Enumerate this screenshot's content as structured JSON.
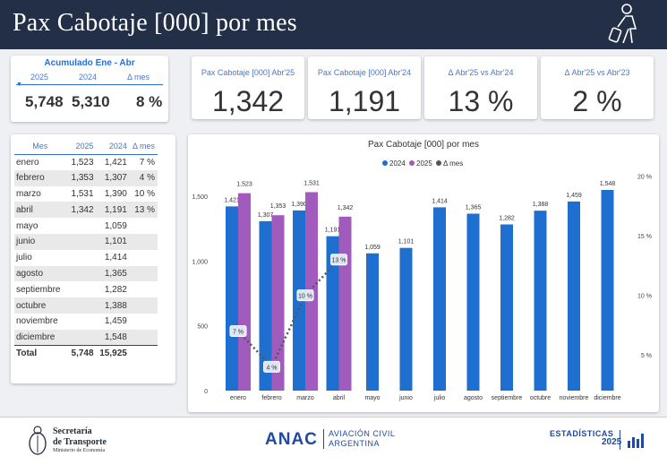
{
  "header": {
    "title": "Pax Cabotaje [000] por mes",
    "traveler_icon": "traveler-icon"
  },
  "accum": {
    "title": "Acumulado Ene - Abr",
    "col_2025": "2025",
    "col_2024": "2024",
    "col_delta": "Δ mes",
    "v2025": "5,748",
    "v2024": "5,310",
    "delta": "8 %"
  },
  "kpis": [
    {
      "label": "Pax Cabotaje [000] Abr'25",
      "value": "1,342"
    },
    {
      "label": "Pax Cabotaje [000] Abr'24",
      "value": "1,191"
    },
    {
      "label": "Δ Abr'25 vs Abr'24",
      "value": "13 %"
    },
    {
      "label": "Δ Abr'25 vs Abr'23",
      "value": "2 %"
    }
  ],
  "table": {
    "headers": [
      "Mes",
      "2025",
      "2024",
      "Δ mes"
    ],
    "rows": [
      [
        "enero",
        "1,523",
        "1,421",
        "7 %"
      ],
      [
        "febrero",
        "1,353",
        "1,307",
        "4 %"
      ],
      [
        "marzo",
        "1,531",
        "1,390",
        "10 %"
      ],
      [
        "abril",
        "1,342",
        "1,191",
        "13 %"
      ],
      [
        "mayo",
        "",
        "1,059",
        ""
      ],
      [
        "junio",
        "",
        "1,101",
        ""
      ],
      [
        "julio",
        "",
        "1,414",
        ""
      ],
      [
        "agosto",
        "",
        "1,365",
        ""
      ],
      [
        "septiembre",
        "",
        "1,282",
        ""
      ],
      [
        "octubre",
        "",
        "1,388",
        ""
      ],
      [
        "noviembre",
        "",
        "1,459",
        ""
      ],
      [
        "diciembre",
        "",
        "1,548",
        ""
      ]
    ],
    "total": [
      "Total",
      "5,748",
      "15,925",
      ""
    ]
  },
  "chart_data": {
    "type": "bar",
    "title": "Pax Cabotaje [000] por mes",
    "categories": [
      "enero",
      "febrero",
      "marzo",
      "abril",
      "mayo",
      "junio",
      "julio",
      "agosto",
      "septiembre",
      "octubre",
      "noviembre",
      "diciembre"
    ],
    "series": [
      {
        "name": "2024",
        "color": "#1f6fd1",
        "values": [
          1421,
          1307,
          1390,
          1191,
          1059,
          1101,
          1414,
          1365,
          1282,
          1388,
          1459,
          1548
        ]
      },
      {
        "name": "2025",
        "color": "#a05bbd",
        "values": [
          1523,
          1353,
          1531,
          1342,
          null,
          null,
          null,
          null,
          null,
          null,
          null,
          null
        ]
      },
      {
        "name": "Δ mes",
        "color": "#555555",
        "values": [
          7,
          4,
          10,
          13,
          null,
          null,
          null,
          null,
          null,
          null,
          null,
          null
        ]
      }
    ],
    "y_left": {
      "ticks": [
        0,
        500,
        1000,
        1500
      ],
      "tick_labels": [
        "0",
        "500",
        "1,000",
        "1,500"
      ],
      "range": [
        0,
        1700
      ]
    },
    "y_right": {
      "ticks": [
        5,
        10,
        15,
        20
      ],
      "tick_labels": [
        "5 %",
        "10 %",
        "15 %",
        "20 %"
      ],
      "range": [
        2,
        20.5
      ]
    },
    "legend": "top-center",
    "delta_labels": [
      "7 %",
      "4 %",
      "10 %",
      "13 %"
    ]
  },
  "footer": {
    "sec_line1": "Secretaría",
    "sec_line2": "de Transporte",
    "sec_line3": "Ministerio de Economía",
    "anac": "ANAC",
    "anac_sub1": "AVIACIÓN CIVIL",
    "anac_sub2": "ARGENTINA",
    "est1": "ESTADÍSTICAS",
    "est2": "2025"
  },
  "colors": {
    "header_bg": "#232f47",
    "accent": "#2a6fd1",
    "bar_2024": "#1f6fd1",
    "bar_2025": "#a05bbd"
  }
}
